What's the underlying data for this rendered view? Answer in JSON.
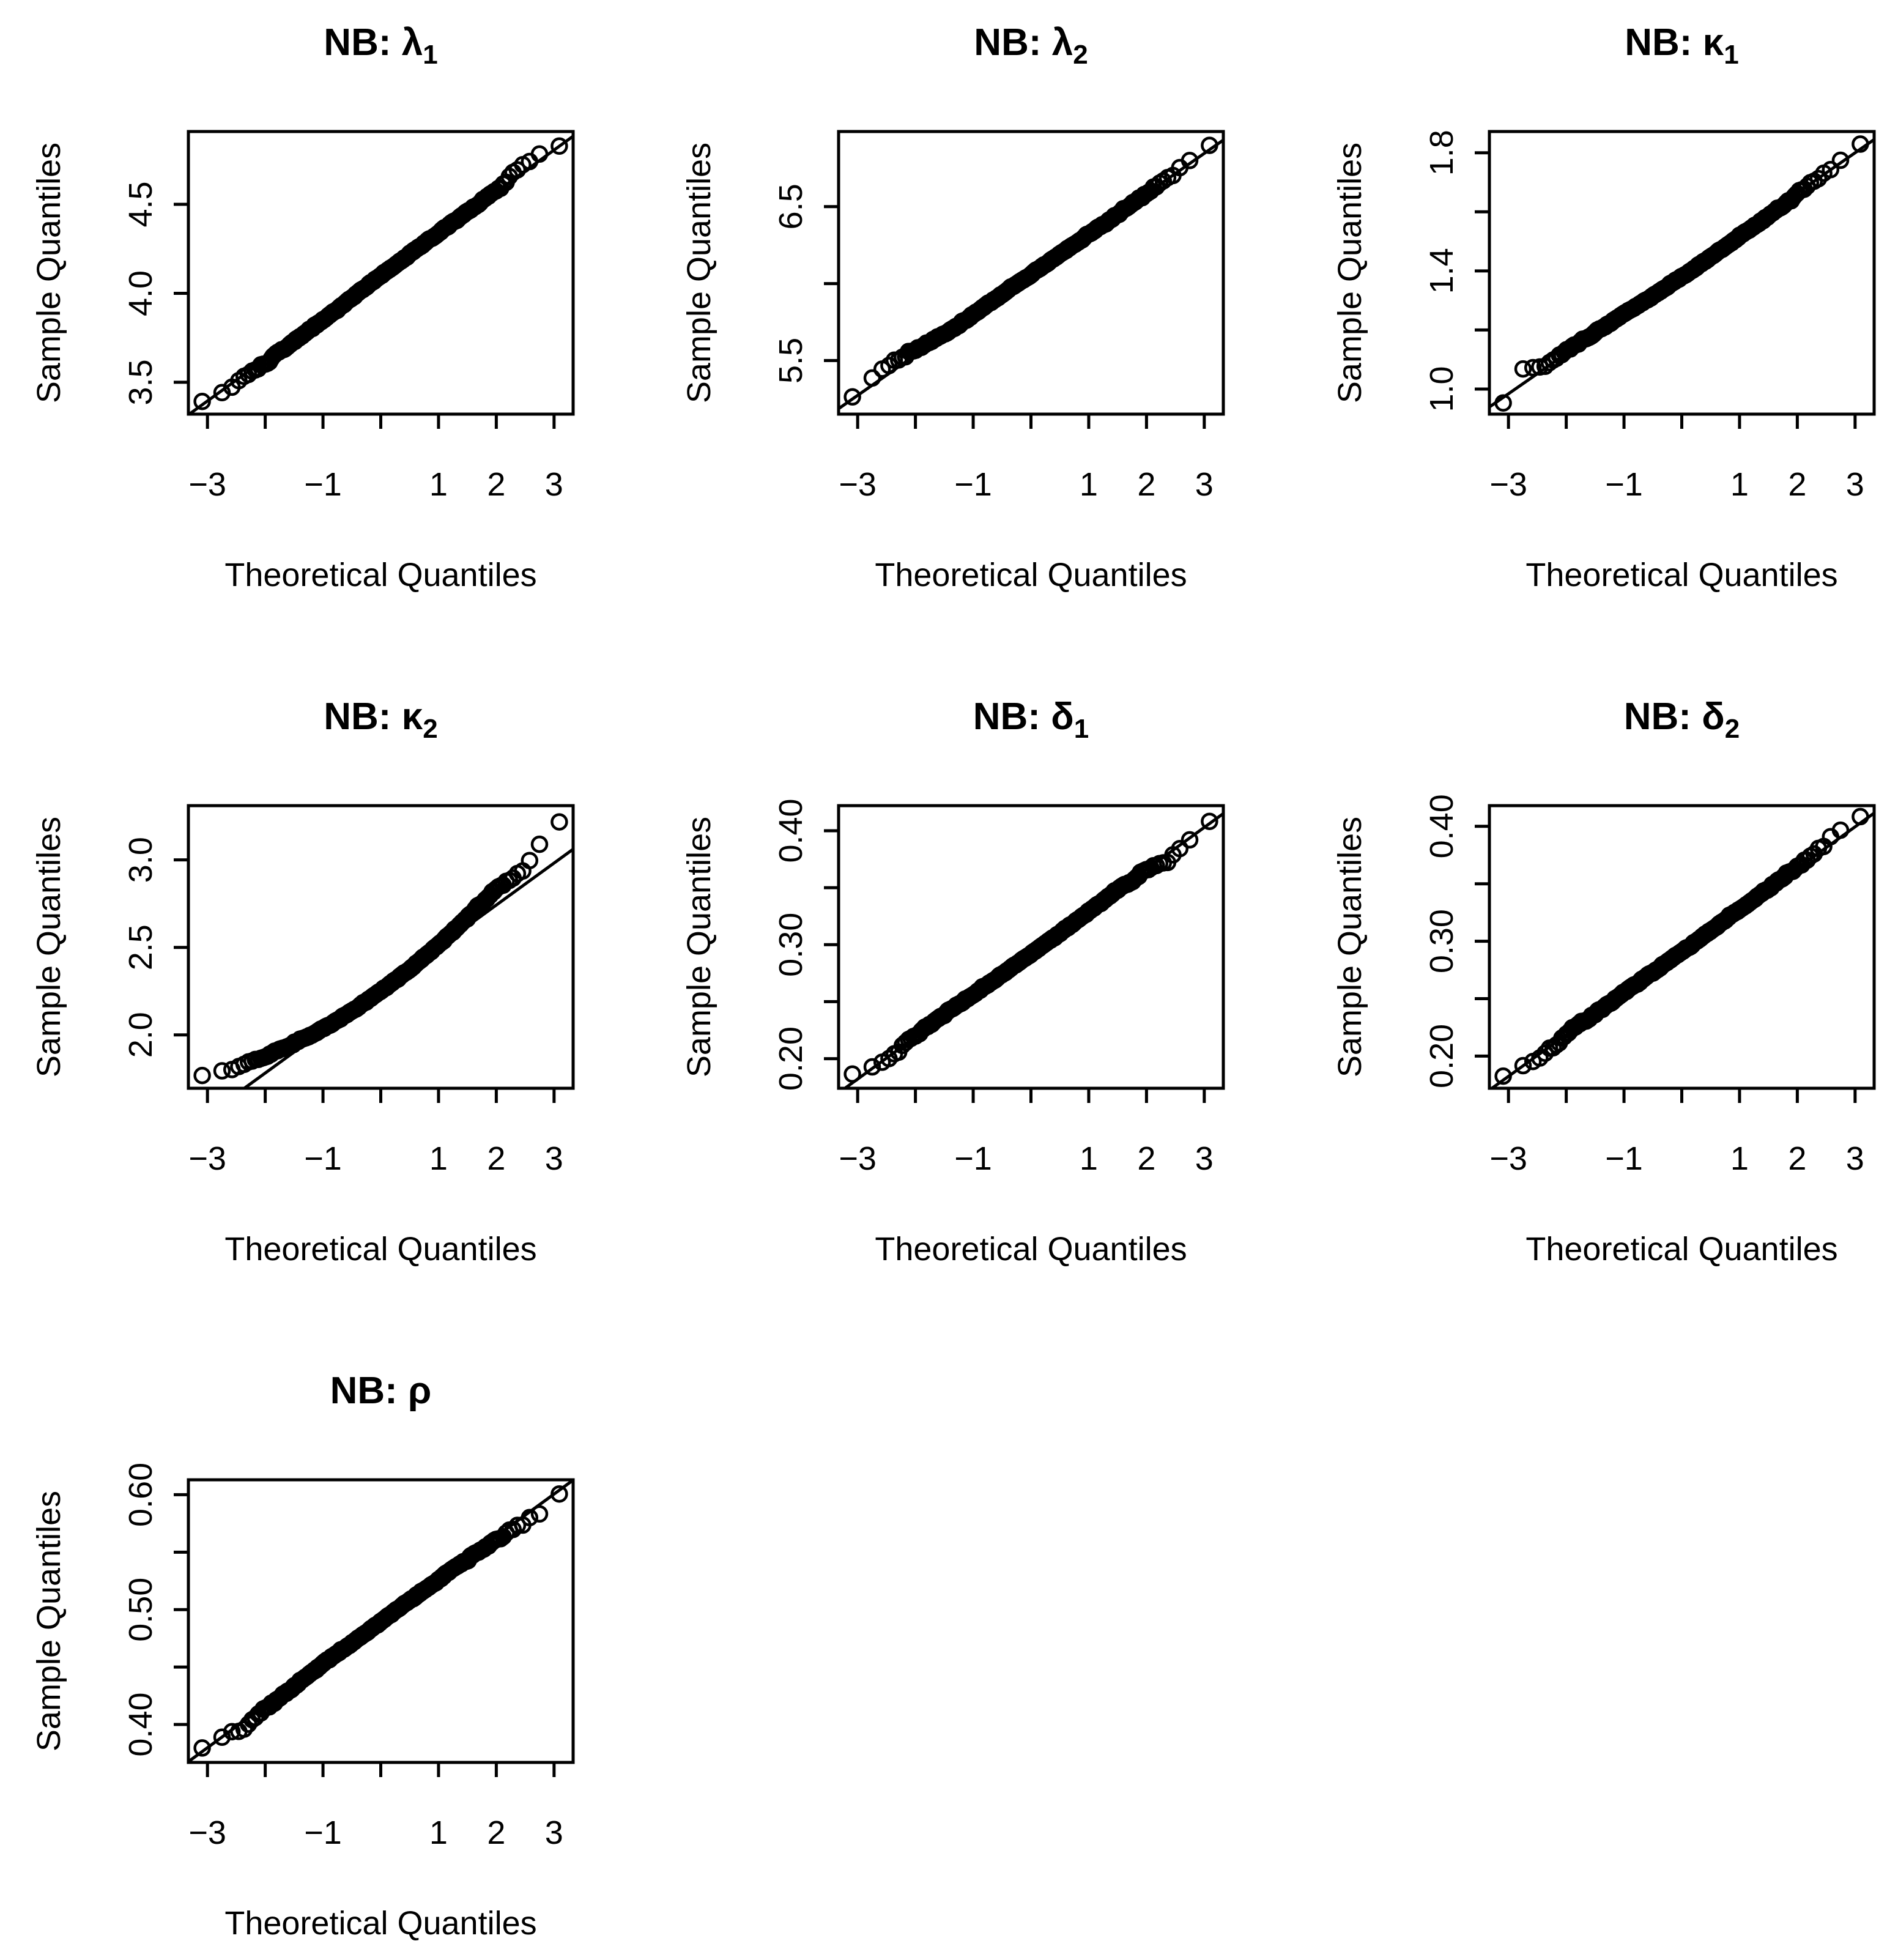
{
  "page": {
    "background": "#ffffff",
    "foreground": "#000000",
    "figure_type": "qqnorm-grid",
    "grid": {
      "rows": 3,
      "cols": 3,
      "filled_panels": 7
    }
  },
  "chart_data": [
    {
      "id": "lambda1",
      "type": "scatter",
      "plot_kind": "normal-qq",
      "title": {
        "prefix": "NB: ",
        "symbol": "λ",
        "subscript": "1"
      },
      "xlabel": "Theoretical Quantiles",
      "ylabel": "Sample Quantiles",
      "marker": "open-circle",
      "color": "#000000",
      "grid": false,
      "legend": null,
      "xlim": [
        -3.33,
        3.33
      ],
      "ylim": [
        3.321,
        4.909
      ],
      "x_ticks": [
        {
          "v": -3,
          "label": "−3"
        },
        {
          "v": -2,
          "label": ""
        },
        {
          "v": -1,
          "label": "−1"
        },
        {
          "v": 0,
          "label": ""
        },
        {
          "v": 1,
          "label": "1"
        },
        {
          "v": 2,
          "label": "2"
        },
        {
          "v": 3,
          "label": "3"
        }
      ],
      "y_ticks": [
        {
          "v": 3.5,
          "label": "3.5"
        },
        {
          "v": 4.0,
          "label": "4.0"
        },
        {
          "v": 4.5,
          "label": "4.5"
        }
      ],
      "n_points": 500,
      "seed": 101,
      "noise": 0.006,
      "keypoints": [
        [
          -3.16,
          3.38
        ],
        [
          -2.6,
          3.47
        ],
        [
          -2.0,
          3.61
        ],
        [
          -1.5,
          3.73
        ],
        [
          -1.0,
          3.85
        ],
        [
          -0.5,
          3.975
        ],
        [
          0.0,
          4.1
        ],
        [
          0.5,
          4.22
        ],
        [
          1.0,
          4.34
        ],
        [
          1.5,
          4.46
        ],
        [
          2.0,
          4.58
        ],
        [
          2.45,
          4.72
        ],
        [
          2.8,
          4.79
        ],
        [
          3.16,
          4.83
        ]
      ],
      "line": {
        "slope": 0.235,
        "intercept": 4.1
      }
    },
    {
      "id": "lambda2",
      "type": "scatter",
      "plot_kind": "normal-qq",
      "title": {
        "prefix": "NB: ",
        "symbol": "λ",
        "subscript": "2"
      },
      "xlabel": "Theoretical Quantiles",
      "ylabel": "Sample Quantiles",
      "marker": "open-circle",
      "color": "#000000",
      "grid": false,
      "legend": null,
      "xlim": [
        -3.33,
        3.33
      ],
      "ylim": [
        5.152,
        6.988
      ],
      "x_ticks": [
        {
          "v": -3,
          "label": "−3"
        },
        {
          "v": -2,
          "label": ""
        },
        {
          "v": -1,
          "label": "−1"
        },
        {
          "v": 0,
          "label": ""
        },
        {
          "v": 1,
          "label": "1"
        },
        {
          "v": 2,
          "label": "2"
        },
        {
          "v": 3,
          "label": "3"
        }
      ],
      "y_ticks": [
        {
          "v": 5.5,
          "label": "5.5"
        },
        {
          "v": 6.0,
          "label": ""
        },
        {
          "v": 6.5,
          "label": "6.5"
        }
      ],
      "n_points": 500,
      "seed": 202,
      "noise": 0.007,
      "keypoints": [
        [
          -3.16,
          5.22
        ],
        [
          -2.7,
          5.42
        ],
        [
          -2.2,
          5.53
        ],
        [
          -1.5,
          5.67
        ],
        [
          -1.0,
          5.8
        ],
        [
          -0.5,
          5.93
        ],
        [
          0.0,
          6.06
        ],
        [
          0.5,
          6.19
        ],
        [
          1.0,
          6.32
        ],
        [
          1.5,
          6.45
        ],
        [
          2.0,
          6.59
        ],
        [
          2.5,
          6.72
        ],
        [
          2.9,
          6.85
        ],
        [
          3.16,
          6.92
        ]
      ],
      "line": {
        "slope": 0.262,
        "intercept": 6.06
      }
    },
    {
      "id": "kappa1",
      "type": "scatter",
      "plot_kind": "normal-qq",
      "title": {
        "prefix": "NB: ",
        "symbol": "κ",
        "subscript": "1"
      },
      "xlabel": "Theoretical Quantiles",
      "ylabel": "Sample Quantiles",
      "marker": "open-circle",
      "color": "#000000",
      "grid": false,
      "legend": null,
      "xlim": [
        -3.33,
        3.33
      ],
      "ylim": [
        0.915,
        1.872
      ],
      "x_ticks": [
        {
          "v": -3,
          "label": "−3"
        },
        {
          "v": -2,
          "label": ""
        },
        {
          "v": -1,
          "label": "−1"
        },
        {
          "v": 0,
          "label": ""
        },
        {
          "v": 1,
          "label": "1"
        },
        {
          "v": 2,
          "label": "2"
        },
        {
          "v": 3,
          "label": "3"
        }
      ],
      "y_ticks": [
        {
          "v": 1.0,
          "label": "1.0"
        },
        {
          "v": 1.2,
          "label": ""
        },
        {
          "v": 1.4,
          "label": "1.4"
        },
        {
          "v": 1.6,
          "label": ""
        },
        {
          "v": 1.8,
          "label": "1.8"
        }
      ],
      "n_points": 500,
      "seed": 303,
      "noise": 0.004,
      "clamp_min": 1.068,
      "overrides": {
        "first": 0.953
      },
      "keypoints": [
        [
          -3.16,
          0.953
        ],
        [
          -2.8,
          1.07
        ],
        [
          -2.4,
          1.08
        ],
        [
          -2.0,
          1.13
        ],
        [
          -1.5,
          1.19
        ],
        [
          -1.0,
          1.256
        ],
        [
          -0.5,
          1.315
        ],
        [
          0.0,
          1.38
        ],
        [
          0.5,
          1.447
        ],
        [
          1.0,
          1.516
        ],
        [
          1.5,
          1.587
        ],
        [
          2.0,
          1.66
        ],
        [
          2.5,
          1.735
        ],
        [
          2.8,
          1.78
        ],
        [
          3.16,
          1.837
        ]
      ],
      "line": {
        "slope": 0.136,
        "intercept": 1.392
      }
    },
    {
      "id": "kappa2",
      "type": "scatter",
      "plot_kind": "normal-qq",
      "title": {
        "prefix": "NB: ",
        "symbol": "κ",
        "subscript": "2"
      },
      "xlabel": "Theoretical Quantiles",
      "ylabel": "Sample Quantiles",
      "marker": "open-circle",
      "color": "#000000",
      "grid": false,
      "legend": null,
      "xlim": [
        -3.33,
        3.33
      ],
      "ylim": [
        1.695,
        3.31
      ],
      "x_ticks": [
        {
          "v": -3,
          "label": "−3"
        },
        {
          "v": -2,
          "label": ""
        },
        {
          "v": -1,
          "label": "−1"
        },
        {
          "v": 0,
          "label": ""
        },
        {
          "v": 1,
          "label": "1"
        },
        {
          "v": 2,
          "label": "2"
        },
        {
          "v": 3,
          "label": "3"
        }
      ],
      "y_ticks": [
        {
          "v": 2.0,
          "label": "2.0"
        },
        {
          "v": 2.5,
          "label": "2.5"
        },
        {
          "v": 3.0,
          "label": "3.0"
        }
      ],
      "n_points": 500,
      "seed": 404,
      "noise": 0.007,
      "keypoints": [
        [
          -3.16,
          1.755
        ],
        [
          -2.8,
          1.78
        ],
        [
          -2.4,
          1.83
        ],
        [
          -2.0,
          1.88
        ],
        [
          -1.5,
          1.95
        ],
        [
          -1.0,
          2.035
        ],
        [
          -0.5,
          2.135
        ],
        [
          0.0,
          2.25
        ],
        [
          0.5,
          2.375
        ],
        [
          1.0,
          2.515
        ],
        [
          1.5,
          2.67
        ],
        [
          2.0,
          2.835
        ],
        [
          2.3,
          2.9
        ],
        [
          2.5,
          2.95
        ],
        [
          2.75,
          3.09
        ],
        [
          3.16,
          3.25
        ]
      ],
      "line": {
        "slope": 0.24,
        "intercept": 2.262
      }
    },
    {
      "id": "delta1",
      "type": "scatter",
      "plot_kind": "normal-qq",
      "title": {
        "prefix": "NB: ",
        "symbol": "δ",
        "subscript": "1"
      },
      "xlabel": "Theoretical Quantiles",
      "ylabel": "Sample Quantiles",
      "marker": "open-circle",
      "color": "#000000",
      "grid": false,
      "legend": null,
      "xlim": [
        -3.33,
        3.33
      ],
      "ylim": [
        0.174,
        0.422
      ],
      "x_ticks": [
        {
          "v": -3,
          "label": "−3"
        },
        {
          "v": -2,
          "label": ""
        },
        {
          "v": -1,
          "label": "−1"
        },
        {
          "v": 0,
          "label": ""
        },
        {
          "v": 1,
          "label": "1"
        },
        {
          "v": 2,
          "label": "2"
        },
        {
          "v": 3,
          "label": "3"
        }
      ],
      "y_ticks": [
        {
          "v": 0.2,
          "label": "0.20"
        },
        {
          "v": 0.25,
          "label": ""
        },
        {
          "v": 0.3,
          "label": "0.30"
        },
        {
          "v": 0.35,
          "label": ""
        },
        {
          "v": 0.4,
          "label": "0.40"
        }
      ],
      "n_points": 500,
      "seed": 505,
      "noise": 0.0012,
      "keypoints": [
        [
          -3.16,
          0.183
        ],
        [
          -2.8,
          0.19
        ],
        [
          -2.4,
          0.203
        ],
        [
          -2.0,
          0.221
        ],
        [
          -1.5,
          0.239
        ],
        [
          -1.0,
          0.256
        ],
        [
          -0.5,
          0.274
        ],
        [
          0.0,
          0.292
        ],
        [
          0.5,
          0.31
        ],
        [
          1.0,
          0.329
        ],
        [
          1.5,
          0.348
        ],
        [
          2.0,
          0.366
        ],
        [
          2.35,
          0.374
        ],
        [
          2.6,
          0.385
        ],
        [
          2.9,
          0.398
        ],
        [
          3.16,
          0.412
        ]
      ],
      "line": {
        "slope": 0.0368,
        "intercept": 0.2925
      }
    },
    {
      "id": "delta2",
      "type": "scatter",
      "plot_kind": "normal-qq",
      "title": {
        "prefix": "NB: ",
        "symbol": "δ",
        "subscript": "2"
      },
      "xlabel": "Theoretical Quantiles",
      "ylabel": "Sample Quantiles",
      "marker": "open-circle",
      "color": "#000000",
      "grid": false,
      "legend": null,
      "xlim": [
        -3.33,
        3.33
      ],
      "ylim": [
        0.172,
        0.418
      ],
      "x_ticks": [
        {
          "v": -3,
          "label": "−3"
        },
        {
          "v": -2,
          "label": ""
        },
        {
          "v": -1,
          "label": "−1"
        },
        {
          "v": 0,
          "label": ""
        },
        {
          "v": 1,
          "label": "1"
        },
        {
          "v": 2,
          "label": "2"
        },
        {
          "v": 3,
          "label": "3"
        }
      ],
      "y_ticks": [
        {
          "v": 0.2,
          "label": "0.20"
        },
        {
          "v": 0.25,
          "label": ""
        },
        {
          "v": 0.3,
          "label": "0.30"
        },
        {
          "v": 0.35,
          "label": ""
        },
        {
          "v": 0.4,
          "label": "0.40"
        }
      ],
      "n_points": 500,
      "seed": 606,
      "noise": 0.0013,
      "keypoints": [
        [
          -3.16,
          0.181
        ],
        [
          -2.8,
          0.19
        ],
        [
          -2.4,
          0.199
        ],
        [
          -2.0,
          0.219
        ],
        [
          -1.5,
          0.237
        ],
        [
          -1.0,
          0.2555
        ],
        [
          -0.5,
          0.273
        ],
        [
          0.0,
          0.291
        ],
        [
          0.5,
          0.309
        ],
        [
          1.0,
          0.3275
        ],
        [
          1.5,
          0.346
        ],
        [
          2.0,
          0.3645
        ],
        [
          2.3,
          0.3755
        ],
        [
          2.55,
          0.391
        ],
        [
          2.8,
          0.395
        ],
        [
          3.16,
          0.409
        ]
      ],
      "line": {
        "slope": 0.0362,
        "intercept": 0.291
      }
    },
    {
      "id": "rho",
      "type": "scatter",
      "plot_kind": "normal-qq",
      "title": {
        "prefix": "NB: ",
        "symbol": "ρ",
        "subscript": ""
      },
      "xlabel": "Theoretical Quantiles",
      "ylabel": "Sample Quantiles",
      "marker": "open-circle",
      "color": "#000000",
      "grid": false,
      "legend": null,
      "xlim": [
        -3.33,
        3.33
      ],
      "ylim": [
        0.367,
        0.613
      ],
      "x_ticks": [
        {
          "v": -3,
          "label": "−3"
        },
        {
          "v": -2,
          "label": ""
        },
        {
          "v": -1,
          "label": "−1"
        },
        {
          "v": 0,
          "label": ""
        },
        {
          "v": 1,
          "label": "1"
        },
        {
          "v": 2,
          "label": "2"
        },
        {
          "v": 3,
          "label": "3"
        }
      ],
      "y_ticks": [
        {
          "v": 0.4,
          "label": "0.40"
        },
        {
          "v": 0.45,
          "label": ""
        },
        {
          "v": 0.5,
          "label": "0.50"
        },
        {
          "v": 0.55,
          "label": ""
        },
        {
          "v": 0.6,
          "label": "0.60"
        }
      ],
      "n_points": 500,
      "seed": 707,
      "noise": 0.0012,
      "keypoints": [
        [
          -3.16,
          0.376
        ],
        [
          -2.8,
          0.388
        ],
        [
          -2.4,
          0.395
        ],
        [
          -2.0,
          0.414
        ],
        [
          -1.5,
          0.4335
        ],
        [
          -1.0,
          0.453
        ],
        [
          -0.5,
          0.471
        ],
        [
          0.0,
          0.49
        ],
        [
          0.5,
          0.508
        ],
        [
          1.0,
          0.526
        ],
        [
          1.5,
          0.544
        ],
        [
          2.0,
          0.56
        ],
        [
          2.5,
          0.576
        ],
        [
          2.8,
          0.585
        ],
        [
          3.16,
          0.604
        ]
      ],
      "line": {
        "slope": 0.0368,
        "intercept": 0.4902
      }
    }
  ]
}
